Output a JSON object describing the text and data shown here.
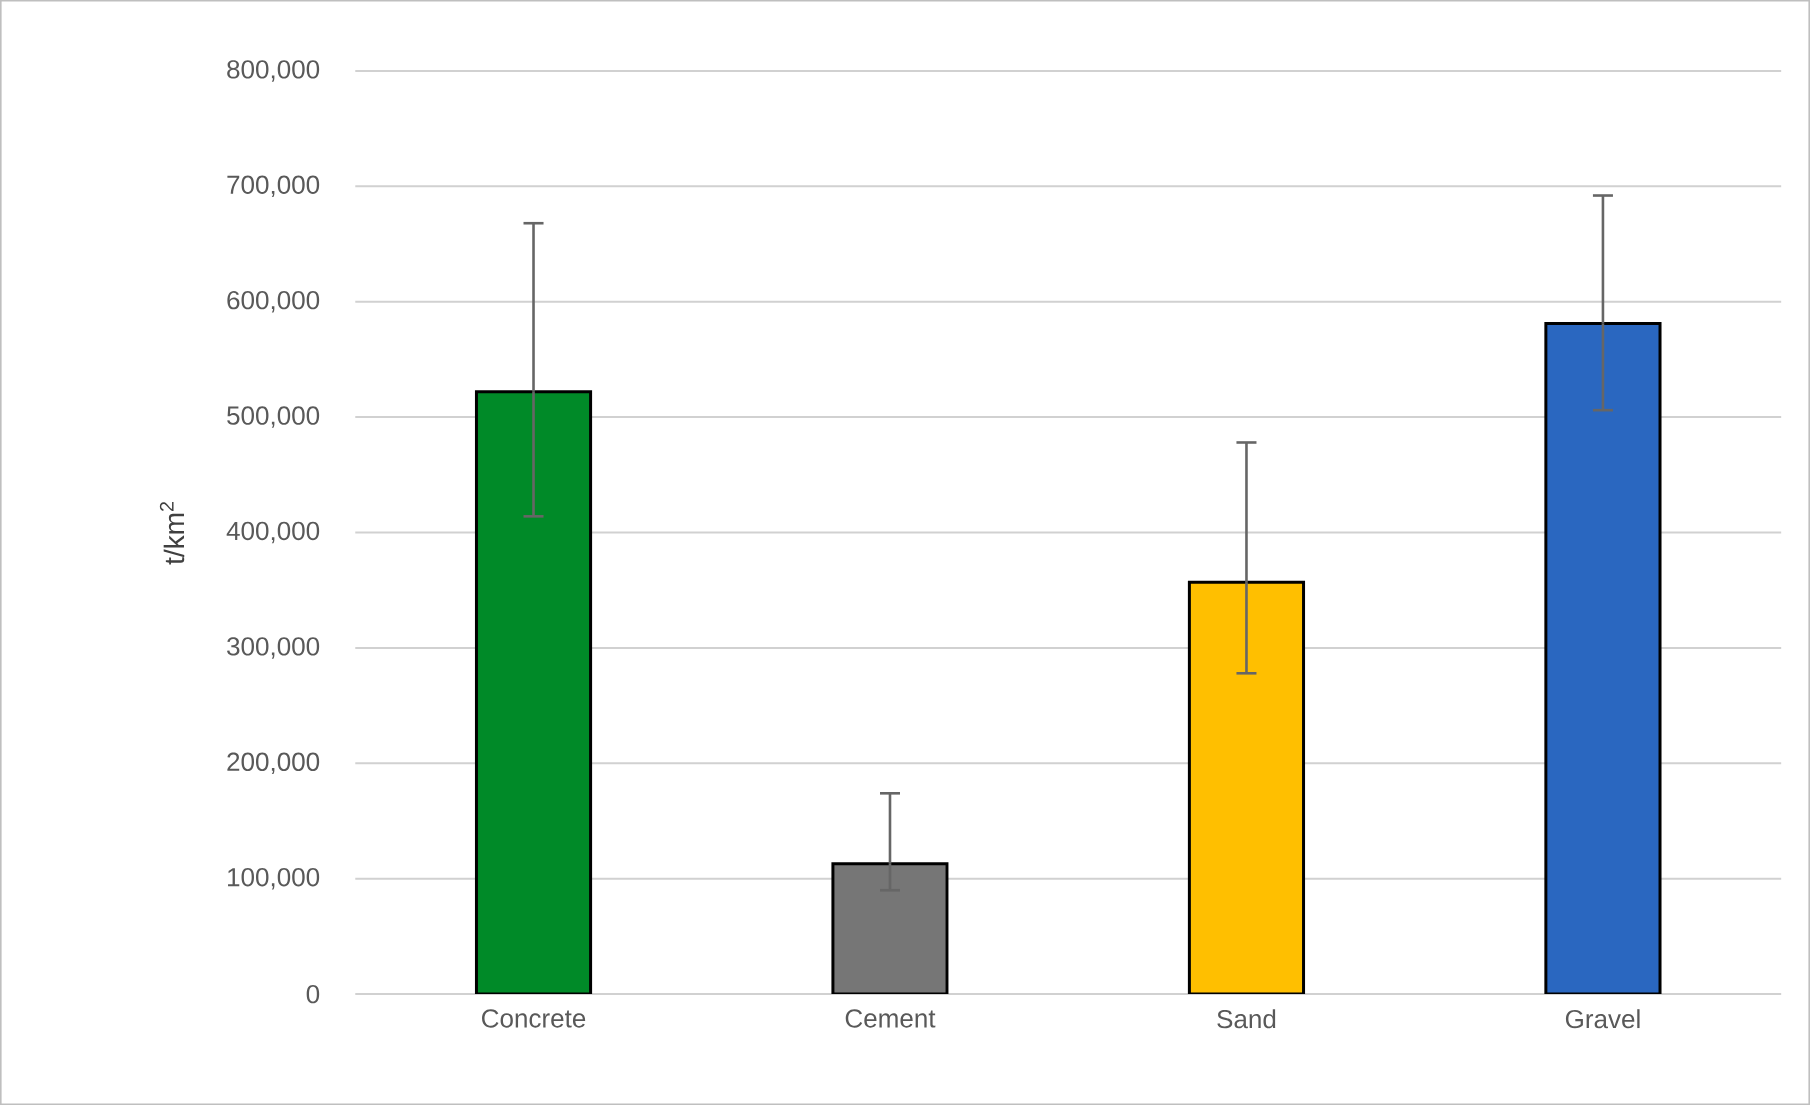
{
  "chart_data": {
    "type": "bar",
    "ylabel": "t/km$^{2}$",
    "categories": [
      "Concrete",
      "Cement",
      "Sand",
      "Gravel"
    ],
    "values": [
      522000,
      113000,
      357000,
      581000
    ],
    "colors": [
      "#008a28",
      "#767676",
      "#ffbf00",
      "#2a67c0"
    ],
    "errors": [
      [
        414000,
        668000
      ],
      [
        90000,
        174000
      ],
      [
        278000,
        478000
      ],
      [
        506000,
        692000
      ]
    ],
    "ylim": [
      0,
      800000
    ],
    "yticks": [
      0,
      {
        "value": 100000,
        "label": "100,000"
      },
      {
        "value": 200000,
        "label": "200,000"
      },
      {
        "value": 300000,
        "label": "300,000"
      },
      {
        "value": 400000,
        "label": "400,000"
      },
      {
        "value": 500000,
        "label": "500,000"
      },
      {
        "value": 600000,
        "label": "600,000"
      },
      {
        "value": 700000,
        "label": "700,000"
      },
      {
        "value": 800000,
        "label": "800,000"
      }
    ],
    "grid": "y"
  }
}
